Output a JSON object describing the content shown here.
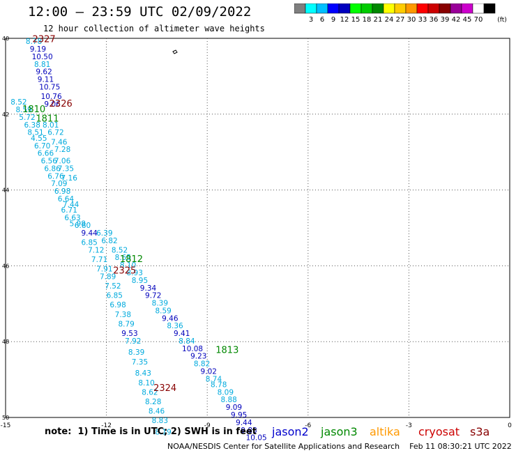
{
  "header": {
    "title": "12:00 — 23:59 UTC 02/09/2022",
    "subtitle": "12 hour collection of altimeter wave heights"
  },
  "legend_scale": {
    "colors": [
      "#7f7f7f",
      "#00ffff",
      "#00bfff",
      "#0000ff",
      "#0000bf",
      "#00ff00",
      "#00cc00",
      "#008800",
      "#ffff00",
      "#ffcc00",
      "#ff9900",
      "#ff0000",
      "#cc0000",
      "#880000",
      "#990099",
      "#cc00cc",
      "#ffffff",
      "#000000"
    ],
    "labels": [
      "3",
      "6",
      "9",
      "12",
      "15",
      "18",
      "21",
      "24",
      "27",
      "30",
      "33",
      "36",
      "39",
      "42",
      "45",
      "70"
    ],
    "unit": "(ft)"
  },
  "axes": {
    "lat_labels": [
      "40",
      "42",
      "44",
      "46",
      "48",
      "50"
    ],
    "lon_labels": [
      "-15",
      "-12",
      "-9",
      "-6",
      "-3",
      "0"
    ]
  },
  "footer": {
    "note": "note:  1) Time is in UTC; 2) SWH is in feet",
    "satellites": [
      {
        "name": "jason2",
        "color": "#0000cc"
      },
      {
        "name": "jason3",
        "color": "#008800"
      },
      {
        "name": "altika",
        "color": "#ff9900"
      },
      {
        "name": "cryosat",
        "color": "#cc0000"
      },
      {
        "name": "s3a",
        "color": "#880000"
      }
    ],
    "credit": "NOAA/NESDIS Center for Satellite Applications and Research    Feb 11 08:30:21 UTC 2022"
  },
  "track_times": [
    {
      "text": "2327",
      "color": "#880000",
      "lon": -14.2,
      "lat": -40.1
    },
    {
      "text": "2326",
      "color": "#880000",
      "lon": -13.7,
      "lat": -41.8
    },
    {
      "text": "1810",
      "color": "#008800",
      "lon": -14.5,
      "lat": -41.95
    },
    {
      "text": "1811",
      "color": "#008800",
      "lon": -14.1,
      "lat": -42.2
    },
    {
      "text": "1812",
      "color": "#008800",
      "lon": -11.6,
      "lat": -45.9
    },
    {
      "text": "2325",
      "color": "#880000",
      "lon": -11.8,
      "lat": -46.2
    },
    {
      "text": "1813",
      "color": "#008800",
      "lon": -8.75,
      "lat": -48.3
    },
    {
      "text": "2324",
      "color": "#880000",
      "lon": -10.6,
      "lat": -49.3
    }
  ],
  "swh_points": [
    {
      "v": "8.78",
      "lon": -14.4,
      "lat": -40.15,
      "c": "#00aadd"
    },
    {
      "v": "9.19",
      "lon": -14.28,
      "lat": -40.35,
      "c": "#0000bb"
    },
    {
      "v": "10.50",
      "lon": -14.22,
      "lat": -40.55,
      "c": "#0000bb"
    },
    {
      "v": "8.81",
      "lon": -14.15,
      "lat": -40.75,
      "c": "#00aadd"
    },
    {
      "v": "9.62",
      "lon": -14.1,
      "lat": -40.95,
      "c": "#0000bb"
    },
    {
      "v": "9.11",
      "lon": -14.05,
      "lat": -41.15,
      "c": "#0000bb"
    },
    {
      "v": "10.75",
      "lon": -14.0,
      "lat": -41.35,
      "c": "#0000bb"
    },
    {
      "v": "10.76",
      "lon": -13.95,
      "lat": -41.6,
      "c": "#0000bb"
    },
    {
      "v": "9.06",
      "lon": -13.85,
      "lat": -41.8,
      "c": "#0000bb"
    },
    {
      "v": "8.52",
      "lon": -14.85,
      "lat": -41.75,
      "c": "#00aadd"
    },
    {
      "v": "8.59",
      "lon": -14.7,
      "lat": -41.95,
      "c": "#00aadd"
    },
    {
      "v": "5.72",
      "lon": -14.6,
      "lat": -42.15,
      "c": "#00aadd"
    },
    {
      "v": "6.38",
      "lon": -14.45,
      "lat": -42.35,
      "c": "#00aadd"
    },
    {
      "v": "8.01",
      "lon": -13.9,
      "lat": -42.35,
      "c": "#00aadd"
    },
    {
      "v": "8.51",
      "lon": -14.35,
      "lat": -42.55,
      "c": "#00aadd"
    },
    {
      "v": "6.72",
      "lon": -13.75,
      "lat": -42.55,
      "c": "#00aadd"
    },
    {
      "v": "4.55",
      "lon": -14.25,
      "lat": -42.7,
      "c": "#00aadd"
    },
    {
      "v": "7.46",
      "lon": -13.65,
      "lat": -42.8,
      "c": "#00aadd"
    },
    {
      "v": "6.70",
      "lon": -14.15,
      "lat": -42.9,
      "c": "#00aadd"
    },
    {
      "v": "7.28",
      "lon": -13.55,
      "lat": -43.0,
      "c": "#00aadd"
    },
    {
      "v": "6.66",
      "lon": -14.05,
      "lat": -43.1,
      "c": "#00aadd"
    },
    {
      "v": "6.56",
      "lon": -13.95,
      "lat": -43.3,
      "c": "#00aadd"
    },
    {
      "v": "7.06",
      "lon": -13.55,
      "lat": -43.3,
      "c": "#00aadd"
    },
    {
      "v": "6.86",
      "lon": -13.85,
      "lat": -43.5,
      "c": "#00aadd"
    },
    {
      "v": "7.35",
      "lon": -13.45,
      "lat": -43.5,
      "c": "#00aadd"
    },
    {
      "v": "6.76",
      "lon": -13.75,
      "lat": -43.7,
      "c": "#00aadd"
    },
    {
      "v": "7.16",
      "lon": -13.35,
      "lat": -43.75,
      "c": "#00aadd"
    },
    {
      "v": "7.09",
      "lon": -13.65,
      "lat": -43.9,
      "c": "#00aadd"
    },
    {
      "v": "6.98",
      "lon": -13.55,
      "lat": -44.1,
      "c": "#00aadd"
    },
    {
      "v": "6.64",
      "lon": -13.45,
      "lat": -44.3,
      "c": "#00aadd"
    },
    {
      "v": "7.44",
      "lon": -13.3,
      "lat": -44.45,
      "c": "#00aadd"
    },
    {
      "v": "6.71",
      "lon": -13.35,
      "lat": -44.6,
      "c": "#00aadd"
    },
    {
      "v": "6.63",
      "lon": -13.25,
      "lat": -44.8,
      "c": "#00aadd"
    },
    {
      "v": "5.98",
      "lon": -13.1,
      "lat": -44.95,
      "c": "#00aadd"
    },
    {
      "v": "6.80",
      "lon": -12.95,
      "lat": -45.0,
      "c": "#00aadd"
    },
    {
      "v": "9.44",
      "lon": -12.75,
      "lat": -45.2,
      "c": "#0000bb"
    },
    {
      "v": "6.39",
      "lon": -12.3,
      "lat": -45.2,
      "c": "#00aadd"
    },
    {
      "v": "6.85",
      "lon": -12.75,
      "lat": -45.45,
      "c": "#00aadd"
    },
    {
      "v": "6.82",
      "lon": -12.15,
      "lat": -45.4,
      "c": "#00aadd"
    },
    {
      "v": "7.12",
      "lon": -12.55,
      "lat": -45.65,
      "c": "#00aadd"
    },
    {
      "v": "8.52",
      "lon": -11.85,
      "lat": -45.65,
      "c": "#00aadd"
    },
    {
      "v": "7.71",
      "lon": -12.45,
      "lat": -45.9,
      "c": "#00aadd"
    },
    {
      "v": "8.65",
      "lon": -11.75,
      "lat": -45.85,
      "c": "#00aadd"
    },
    {
      "v": "7.91",
      "lon": -12.3,
      "lat": -46.15,
      "c": "#00aadd"
    },
    {
      "v": "8.10",
      "lon": -11.6,
      "lat": -46.05,
      "c": "#00aadd"
    },
    {
      "v": "8.93",
      "lon": -11.4,
      "lat": -46.25,
      "c": "#00aadd"
    },
    {
      "v": "7.89",
      "lon": -12.2,
      "lat": -46.35,
      "c": "#00aadd"
    },
    {
      "v": "8.95",
      "lon": -11.25,
      "lat": -46.45,
      "c": "#00aadd"
    },
    {
      "v": "7.52",
      "lon": -12.05,
      "lat": -46.6,
      "c": "#00aadd"
    },
    {
      "v": "9.34",
      "lon": -11.0,
      "lat": -46.65,
      "c": "#0000bb"
    },
    {
      "v": "6.85",
      "lon": -12.0,
      "lat": -46.85,
      "c": "#00aadd"
    },
    {
      "v": "9.72",
      "lon": -10.85,
      "lat": -46.85,
      "c": "#0000bb"
    },
    {
      "v": "8.39",
      "lon": -10.65,
      "lat": -47.05,
      "c": "#00aadd"
    },
    {
      "v": "6.98",
      "lon": -11.9,
      "lat": -47.1,
      "c": "#00aadd"
    },
    {
      "v": "8.59",
      "lon": -10.55,
      "lat": -47.25,
      "c": "#00aadd"
    },
    {
      "v": "7.38",
      "lon": -11.75,
      "lat": -47.35,
      "c": "#00aadd"
    },
    {
      "v": "9.46",
      "lon": -10.35,
      "lat": -47.45,
      "c": "#0000bb"
    },
    {
      "v": "8.79",
      "lon": -11.65,
      "lat": -47.6,
      "c": "#00aadd"
    },
    {
      "v": "8.36",
      "lon": -10.2,
      "lat": -47.65,
      "c": "#00aadd"
    },
    {
      "v": "9.41",
      "lon": -10.0,
      "lat": -47.85,
      "c": "#0000bb"
    },
    {
      "v": "9.53",
      "lon": -11.55,
      "lat": -47.85,
      "c": "#0000bb"
    },
    {
      "v": "8.84",
      "lon": -9.85,
      "lat": -48.05,
      "c": "#00aadd"
    },
    {
      "v": "7.92",
      "lon": -11.45,
      "lat": -48.05,
      "c": "#00aadd"
    },
    {
      "v": "10.08",
      "lon": -9.75,
      "lat": -48.25,
      "c": "#0000bb"
    },
    {
      "v": "8.39",
      "lon": -11.35,
      "lat": -48.35,
      "c": "#00aadd"
    },
    {
      "v": "9.23",
      "lon": -9.5,
      "lat": -48.45,
      "c": "#0000bb"
    },
    {
      "v": "7.35",
      "lon": -11.25,
      "lat": -48.6,
      "c": "#00aadd"
    },
    {
      "v": "8.82",
      "lon": -9.4,
      "lat": -48.65,
      "c": "#00aadd"
    },
    {
      "v": "9.02",
      "lon": -9.2,
      "lat": -48.85,
      "c": "#0000bb"
    },
    {
      "v": "8.43",
      "lon": -11.15,
      "lat": -48.9,
      "c": "#00aadd"
    },
    {
      "v": "8.74",
      "lon": -9.05,
      "lat": -49.05,
      "c": "#00aadd"
    },
    {
      "v": "8.10",
      "lon": -11.05,
      "lat": -49.15,
      "c": "#00aadd"
    },
    {
      "v": "8.78",
      "lon": -8.9,
      "lat": -49.2,
      "c": "#00aadd"
    },
    {
      "v": "8.62",
      "lon": -10.95,
      "lat": -49.4,
      "c": "#00aadd"
    },
    {
      "v": "8.09",
      "lon": -8.7,
      "lat": -49.4,
      "c": "#00aadd"
    },
    {
      "v": "8.88",
      "lon": -8.6,
      "lat": -49.6,
      "c": "#00aadd"
    },
    {
      "v": "8.28",
      "lon": -10.85,
      "lat": -49.65,
      "c": "#00aadd"
    },
    {
      "v": "9.09",
      "lon": -8.45,
      "lat": -49.8,
      "c": "#0000bb"
    },
    {
      "v": "8.46",
      "lon": -10.75,
      "lat": -49.9,
      "c": "#00aadd"
    },
    {
      "v": "9.95",
      "lon": -8.3,
      "lat": -50.0,
      "c": "#0000bb"
    },
    {
      "v": "8.83",
      "lon": -10.65,
      "lat": -50.15,
      "c": "#00aadd"
    },
    {
      "v": "9.44",
      "lon": -8.15,
      "lat": -50.2,
      "c": "#0000bb"
    },
    {
      "v": "9.83",
      "lon": -8.0,
      "lat": -50.4,
      "c": "#0000bb"
    },
    {
      "v": "8.19",
      "lon": -10.55,
      "lat": -50.45,
      "c": "#00aadd"
    },
    {
      "v": "10.05",
      "lon": -7.85,
      "lat": -50.6,
      "c": "#0000bb"
    }
  ]
}
